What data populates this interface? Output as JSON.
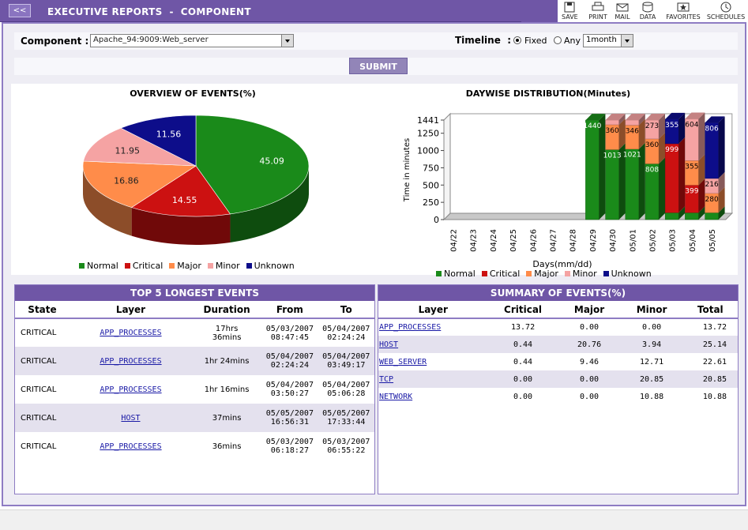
{
  "header": {
    "back_label": "<<",
    "title": "EXECUTIVE REPORTS  -  COMPONENT"
  },
  "toolbar": [
    {
      "name": "save",
      "label": "SAVE",
      "icon": "save-icon"
    },
    {
      "name": "print",
      "label": "PRINT",
      "icon": "print-icon"
    },
    {
      "name": "mail",
      "label": "MAIL",
      "icon": "mail-icon"
    },
    {
      "name": "data",
      "label": "DATA",
      "icon": "data-icon"
    },
    {
      "name": "favorites",
      "label": "FAVORITES",
      "icon": "favorites-icon"
    },
    {
      "name": "schedules",
      "label": "SCHEDULES",
      "icon": "schedules-icon"
    }
  ],
  "filters": {
    "component_label": "Component",
    "component_value": "Apache_94:9009:Web_server",
    "timeline_label": "Timeline",
    "fixed_label": "Fixed",
    "any_label": "Any",
    "period_value": "1month"
  },
  "submit_label": "SUBMIT",
  "colors": {
    "normal": "#1a8a1a",
    "critical": "#cc1111",
    "major": "#ff8c4a",
    "minor": "#f5a3a3",
    "unknown": "#0d0d8a"
  },
  "chart_data": [
    {
      "type": "pie",
      "title": "OVERVIEW OF EVENTS(%)",
      "categories": [
        "Normal",
        "Critical",
        "Major",
        "Minor",
        "Unknown"
      ],
      "values": [
        45.09,
        14.55,
        16.86,
        11.95,
        11.56
      ],
      "legend": "bottom"
    },
    {
      "type": "bar",
      "stacked": true,
      "title": "DAYWISE DISTRIBUTION(Minutes)",
      "xlabel": "Days(mm/dd)",
      "ylabel": "Time in minutes",
      "yticks": [
        0,
        250,
        500,
        750,
        1000,
        1250,
        1441
      ],
      "ylim": [
        0,
        1441
      ],
      "categories": [
        "04/22",
        "04/23",
        "04/24",
        "04/25",
        "04/26",
        "04/27",
        "04/28",
        "04/29",
        "04/30",
        "05/01",
        "05/02",
        "05/03",
        "05/04",
        "05/05"
      ],
      "series": [
        {
          "name": "Normal",
          "values": [
            0,
            0,
            0,
            0,
            0,
            0,
            0,
            1440,
            1013,
            1021,
            808,
            100,
            100,
            100
          ]
        },
        {
          "name": "Critical",
          "values": [
            0,
            0,
            0,
            0,
            0,
            0,
            0,
            0,
            0,
            0,
            0,
            999,
            399,
            0
          ]
        },
        {
          "name": "Major",
          "values": [
            0,
            0,
            0,
            0,
            0,
            0,
            0,
            0,
            360,
            346,
            360,
            0,
            355,
            280
          ]
        },
        {
          "name": "Minor",
          "values": [
            0,
            0,
            0,
            0,
            0,
            0,
            0,
            0,
            68,
            74,
            273,
            0,
            604,
            216
          ]
        },
        {
          "name": "Unknown",
          "values": [
            0,
            0,
            0,
            0,
            0,
            0,
            0,
            0,
            0,
            0,
            0,
            355,
            0,
            806
          ]
        }
      ],
      "bar_labels": [
        {
          "day": "04/29",
          "series": "Normal",
          "text": "1440"
        },
        {
          "day": "04/30",
          "series": "Normal",
          "text": "1013"
        },
        {
          "day": "04/30",
          "series": "Major",
          "text": "360"
        },
        {
          "day": "05/01",
          "series": "Normal",
          "text": "1021"
        },
        {
          "day": "05/01",
          "series": "Major",
          "text": "346"
        },
        {
          "day": "05/02",
          "series": "Normal",
          "text": "808"
        },
        {
          "day": "05/02",
          "series": "Major",
          "text": "360"
        },
        {
          "day": "05/02",
          "series": "Minor",
          "text": "273"
        },
        {
          "day": "05/03",
          "series": "Critical",
          "text": "999"
        },
        {
          "day": "05/03",
          "series": "Unknown",
          "text": "355"
        },
        {
          "day": "05/04",
          "series": "Critical",
          "text": "399"
        },
        {
          "day": "05/04",
          "series": "Major",
          "text": "355"
        },
        {
          "day": "05/04",
          "series": "Minor",
          "text": "604"
        },
        {
          "day": "05/05",
          "series": "Major",
          "text": "280"
        },
        {
          "day": "05/05",
          "series": "Minor",
          "text": "216"
        },
        {
          "day": "05/05",
          "series": "Unknown",
          "text": "806"
        }
      ],
      "legend": "bottom"
    }
  ],
  "top_events": {
    "title": "TOP 5 LONGEST EVENTS",
    "columns": [
      "State",
      "Layer",
      "Duration",
      "From",
      "To"
    ],
    "rows": [
      {
        "state": "CRITICAL",
        "layer": "APP_PROCESSES",
        "duration": [
          "17hrs",
          "36mins"
        ],
        "from": [
          "05/03/2007",
          "08:47:45"
        ],
        "to": [
          "05/04/2007",
          "02:24:24"
        ]
      },
      {
        "state": "CRITICAL",
        "layer": "APP_PROCESSES",
        "duration": [
          "1hr 24mins"
        ],
        "from": [
          "05/04/2007",
          "02:24:24"
        ],
        "to": [
          "05/04/2007",
          "03:49:17"
        ]
      },
      {
        "state": "CRITICAL",
        "layer": "APP_PROCESSES",
        "duration": [
          "1hr 16mins"
        ],
        "from": [
          "05/04/2007",
          "03:50:27"
        ],
        "to": [
          "05/04/2007",
          "05:06:28"
        ]
      },
      {
        "state": "CRITICAL",
        "layer": "HOST",
        "duration": [
          "37mins"
        ],
        "from": [
          "05/05/2007",
          "16:56:31"
        ],
        "to": [
          "05/05/2007",
          "17:33:44"
        ]
      },
      {
        "state": "CRITICAL",
        "layer": "APP_PROCESSES",
        "duration": [
          "36mins"
        ],
        "from": [
          "05/03/2007",
          "06:18:27"
        ],
        "to": [
          "05/03/2007",
          "06:55:22"
        ]
      }
    ]
  },
  "summary": {
    "title": "SUMMARY OF EVENTS(%)",
    "columns": [
      "Layer",
      "Critical",
      "Major",
      "Minor",
      "Total"
    ],
    "rows": [
      {
        "layer": "APP_PROCESSES",
        "critical": "13.72",
        "major": "0.00",
        "minor": "0.00",
        "total": "13.72"
      },
      {
        "layer": "HOST",
        "critical": "0.44",
        "major": "20.76",
        "minor": "3.94",
        "total": "25.14"
      },
      {
        "layer": "WEB_SERVER",
        "critical": "0.44",
        "major": "9.46",
        "minor": "12.71",
        "total": "22.61"
      },
      {
        "layer": "TCP",
        "critical": "0.00",
        "major": "0.00",
        "minor": "20.85",
        "total": "20.85"
      },
      {
        "layer": "NETWORK",
        "critical": "0.00",
        "major": "0.00",
        "minor": "10.88",
        "total": "10.88"
      }
    ]
  }
}
